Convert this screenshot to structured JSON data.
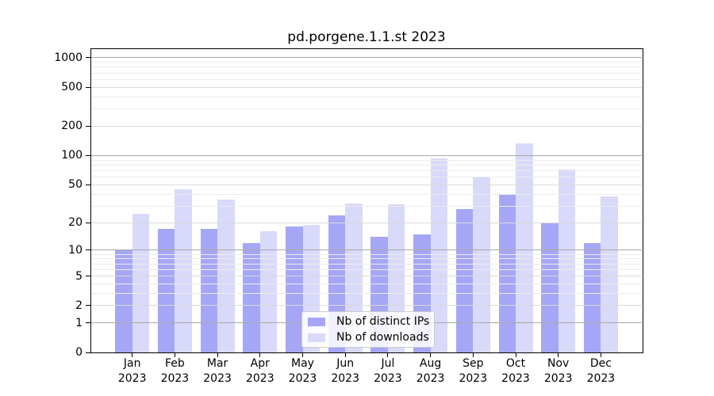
{
  "chart_data": {
    "type": "bar",
    "title": "pd.porgene.1.1.st 2023",
    "year": "2023",
    "categories": [
      "Jan",
      "Feb",
      "Mar",
      "Apr",
      "May",
      "Jun",
      "Jul",
      "Aug",
      "Sep",
      "Oct",
      "Nov",
      "Dec"
    ],
    "series": [
      {
        "name": "Nb of distinct IPs",
        "color": "#a6a6f6",
        "values": [
          10,
          17,
          17,
          12,
          18,
          24,
          14,
          15,
          28,
          39,
          20,
          12
        ]
      },
      {
        "name": "Nb of downloads",
        "color": "#d9d9fa",
        "values": [
          25,
          45,
          35,
          16,
          19,
          32,
          31,
          93,
          61,
          134,
          72,
          38
        ]
      }
    ],
    "y_scale": "log10(1+x)",
    "y_tick_labels": [
      "0",
      "1",
      "2",
      "5",
      "10",
      "20",
      "50",
      "100",
      "200",
      "500",
      "1000"
    ],
    "y_ticks": [
      0,
      1,
      2,
      5,
      10,
      20,
      50,
      100,
      200,
      500,
      1000
    ],
    "ylim": [
      0,
      1270
    ],
    "grid": "on",
    "legend_position": "lower center",
    "colors": {
      "axis": "#000000",
      "grid_decade": "#a9a9a9",
      "grid_mid": "#dadada",
      "grid_minor": "#ececec",
      "background": "#ffffff"
    }
  }
}
